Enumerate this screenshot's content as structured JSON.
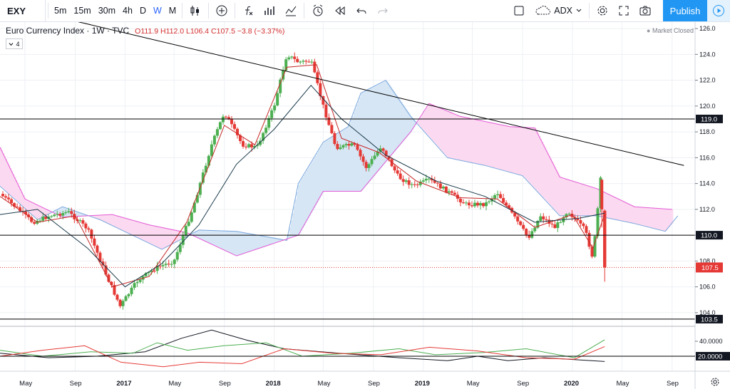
{
  "toolbar": {
    "symbol": "EXY",
    "intervals": [
      "5m",
      "15m",
      "30m",
      "4h",
      "D",
      "W",
      "M"
    ],
    "active_interval": "W",
    "indicator_label": "ADX",
    "publish_label": "Publish"
  },
  "legend": {
    "title": "Euro Currency Index · 1W · TVC",
    "open": "O111.9",
    "high": "H112.0",
    "low": "L106.4",
    "close": "C107.5",
    "change": "−3.8 (−3.37%)",
    "collapse_count": "4",
    "market_status": "Market Closed"
  },
  "colors": {
    "bull": "#4caf50",
    "bear": "#e53935",
    "accent": "#2196f3",
    "cloud_bull": "#d6e6f5",
    "cloud_bear": "#fbd9f0",
    "senkou_a": "#7aa7dd",
    "senkou_b": "#e35bd6"
  },
  "chart_data": [
    {
      "type": "candlestick",
      "title": "Euro Currency Index · 1W · TVC",
      "x_ticks": [
        "May",
        "Sep",
        "2017",
        "May",
        "Sep",
        "2018",
        "May",
        "Sep",
        "2019",
        "May",
        "Sep",
        "2020",
        "May",
        "Sep"
      ],
      "y_ticks": [
        "126.0",
        "124.0",
        "122.0",
        "120.0",
        "118.0",
        "116.0",
        "114.0",
        "112.0",
        "110.0",
        "108.0",
        "106.0",
        "104.0"
      ],
      "ylim": [
        103.0,
        126.5
      ],
      "horizontal_lines": [
        {
          "label": "119.0",
          "value": 119.0
        },
        {
          "label": "110.0",
          "value": 110.0
        },
        {
          "label": "103.5",
          "value": 103.5
        }
      ],
      "last_price": {
        "label": "107.5",
        "value": 107.5
      },
      "trendline": [
        {
          "x": "2016-05-01",
          "y": 127.5
        },
        {
          "x": "2020-09-30",
          "y": 115.4
        }
      ],
      "close_path": [
        {
          "x": "2016-03-01",
          "y": 113.2
        },
        {
          "x": "2016-04-15",
          "y": 112.0
        },
        {
          "x": "2016-05-20",
          "y": 111.0
        },
        {
          "x": "2016-07-01",
          "y": 111.5
        },
        {
          "x": "2016-08-15",
          "y": 111.8
        },
        {
          "x": "2016-10-01",
          "y": 110.5
        },
        {
          "x": "2016-11-15",
          "y": 107.0
        },
        {
          "x": "2016-12-20",
          "y": 104.5
        },
        {
          "x": "2017-02-01",
          "y": 106.5
        },
        {
          "x": "2017-03-20",
          "y": 107.5
        },
        {
          "x": "2017-05-01",
          "y": 108.0
        },
        {
          "x": "2017-06-15",
          "y": 112.0
        },
        {
          "x": "2017-08-01",
          "y": 117.0
        },
        {
          "x": "2017-09-01",
          "y": 119.5
        },
        {
          "x": "2017-10-15",
          "y": 117.0
        },
        {
          "x": "2017-11-20",
          "y": 116.8
        },
        {
          "x": "2018-01-01",
          "y": 120.0
        },
        {
          "x": "2018-02-01",
          "y": 124.0
        },
        {
          "x": "2018-03-01",
          "y": 123.4
        },
        {
          "x": "2018-04-01",
          "y": 123.5
        },
        {
          "x": "2018-05-01",
          "y": 120.0
        },
        {
          "x": "2018-06-01",
          "y": 116.8
        },
        {
          "x": "2018-07-15",
          "y": 117.0
        },
        {
          "x": "2018-08-15",
          "y": 115.2
        },
        {
          "x": "2018-09-20",
          "y": 116.9
        },
        {
          "x": "2018-11-01",
          "y": 114.5
        },
        {
          "x": "2018-12-10",
          "y": 113.8
        },
        {
          "x": "2019-01-15",
          "y": 114.3
        },
        {
          "x": "2019-03-01",
          "y": 113.4
        },
        {
          "x": "2019-04-15",
          "y": 112.4
        },
        {
          "x": "2019-06-01",
          "y": 112.4
        },
        {
          "x": "2019-07-01",
          "y": 113.3
        },
        {
          "x": "2019-08-01",
          "y": 111.9
        },
        {
          "x": "2019-09-15",
          "y": 109.8
        },
        {
          "x": "2019-10-15",
          "y": 111.5
        },
        {
          "x": "2019-11-20",
          "y": 110.6
        },
        {
          "x": "2019-12-20",
          "y": 111.9
        },
        {
          "x": "2020-02-01",
          "y": 110.4
        },
        {
          "x": "2020-02-20",
          "y": 108.2
        },
        {
          "x": "2020-03-10",
          "y": 114.3
        },
        {
          "x": "2020-03-20",
          "y": 107.5
        }
      ],
      "ichimoku_senkou_a": [
        {
          "x": "2016-03-01",
          "y": 113.8
        },
        {
          "x": "2016-06-01",
          "y": 111.2
        },
        {
          "x": "2016-08-01",
          "y": 112.2
        },
        {
          "x": "2016-11-01",
          "y": 111.2
        },
        {
          "x": "2017-02-01",
          "y": 109.8
        },
        {
          "x": "2017-04-01",
          "y": 108.9
        },
        {
          "x": "2017-07-01",
          "y": 110.4
        },
        {
          "x": "2017-10-01",
          "y": 110.3
        },
        {
          "x": "2018-02-01",
          "y": 109.6
        },
        {
          "x": "2018-03-01",
          "y": 114.0
        },
        {
          "x": "2018-05-01",
          "y": 117.2
        },
        {
          "x": "2018-07-01",
          "y": 118.4
        },
        {
          "x": "2018-08-01",
          "y": 121.0
        },
        {
          "x": "2018-10-01",
          "y": 122.0
        },
        {
          "x": "2018-12-01",
          "y": 119.2
        },
        {
          "x": "2019-03-01",
          "y": 116.0
        },
        {
          "x": "2019-06-01",
          "y": 115.4
        },
        {
          "x": "2019-09-01",
          "y": 114.6
        },
        {
          "x": "2019-12-01",
          "y": 111.5
        },
        {
          "x": "2020-03-01",
          "y": 111.5
        },
        {
          "x": "2020-06-01",
          "y": 110.9
        },
        {
          "x": "2020-08-15",
          "y": 110.3
        },
        {
          "x": "2020-09-15",
          "y": 111.5
        }
      ],
      "ichimoku_senkou_b": [
        {
          "x": "2016-03-01",
          "y": 116.8
        },
        {
          "x": "2016-05-01",
          "y": 112.8
        },
        {
          "x": "2016-08-01",
          "y": 111.4
        },
        {
          "x": "2016-12-01",
          "y": 111.6
        },
        {
          "x": "2017-03-01",
          "y": 110.8
        },
        {
          "x": "2017-06-01",
          "y": 110.2
        },
        {
          "x": "2017-10-01",
          "y": 108.4
        },
        {
          "x": "2018-03-01",
          "y": 110.0
        },
        {
          "x": "2018-05-01",
          "y": 113.4
        },
        {
          "x": "2018-08-01",
          "y": 113.4
        },
        {
          "x": "2018-12-01",
          "y": 118.0
        },
        {
          "x": "2019-01-15",
          "y": 120.2
        },
        {
          "x": "2019-04-01",
          "y": 119.2
        },
        {
          "x": "2019-08-01",
          "y": 118.4
        },
        {
          "x": "2019-10-01",
          "y": 118.3
        },
        {
          "x": "2019-12-01",
          "y": 114.5
        },
        {
          "x": "2020-03-01",
          "y": 113.6
        },
        {
          "x": "2020-06-01",
          "y": 112.2
        },
        {
          "x": "2020-09-01",
          "y": 112.0
        }
      ],
      "ma_fast": [
        {
          "x": "2016-03-01",
          "y": 113.0
        },
        {
          "x": "2016-06-01",
          "y": 111.0
        },
        {
          "x": "2016-09-01",
          "y": 111.5
        },
        {
          "x": "2016-12-01",
          "y": 106.0
        },
        {
          "x": "2017-03-01",
          "y": 106.8
        },
        {
          "x": "2017-06-01",
          "y": 111.0
        },
        {
          "x": "2017-09-01",
          "y": 118.5
        },
        {
          "x": "2017-11-15",
          "y": 117.0
        },
        {
          "x": "2018-02-01",
          "y": 123.0
        },
        {
          "x": "2018-04-15",
          "y": 123.2
        },
        {
          "x": "2018-06-15",
          "y": 117.5
        },
        {
          "x": "2018-09-15",
          "y": 116.4
        },
        {
          "x": "2018-12-15",
          "y": 114.2
        },
        {
          "x": "2019-04-01",
          "y": 112.9
        },
        {
          "x": "2019-07-01",
          "y": 112.8
        },
        {
          "x": "2019-10-01",
          "y": 110.6
        },
        {
          "x": "2020-01-01",
          "y": 111.6
        },
        {
          "x": "2020-02-20",
          "y": 109.0
        },
        {
          "x": "2020-03-20",
          "y": 111.6
        }
      ],
      "ma_slow": [
        {
          "x": "2016-03-01",
          "y": 111.6
        },
        {
          "x": "2016-06-01",
          "y": 112.0
        },
        {
          "x": "2016-10-01",
          "y": 109.0
        },
        {
          "x": "2017-01-01",
          "y": 106.0
        },
        {
          "x": "2017-04-01",
          "y": 107.8
        },
        {
          "x": "2017-07-01",
          "y": 110.8
        },
        {
          "x": "2017-10-01",
          "y": 115.5
        },
        {
          "x": "2018-01-01",
          "y": 118.2
        },
        {
          "x": "2018-04-01",
          "y": 121.6
        },
        {
          "x": "2018-06-15",
          "y": 119.0
        },
        {
          "x": "2018-10-01",
          "y": 116.2
        },
        {
          "x": "2019-02-01",
          "y": 114.2
        },
        {
          "x": "2019-06-01",
          "y": 113.0
        },
        {
          "x": "2019-10-01",
          "y": 111.0
        },
        {
          "x": "2020-01-15",
          "y": 111.3
        },
        {
          "x": "2020-03-20",
          "y": 111.7
        }
      ]
    },
    {
      "type": "line",
      "ylim": [
        0,
        60
      ],
      "y_ticks": [
        "40.0000",
        "20.0000"
      ],
      "series": [
        {
          "values": [
            [
              0,
              24
            ],
            [
              0.08,
              18
            ],
            [
              0.16,
              20
            ],
            [
              0.24,
              26
            ],
            [
              0.3,
              44
            ],
            [
              0.35,
              55
            ],
            [
              0.41,
              41
            ],
            [
              0.47,
              30
            ],
            [
              0.56,
              24
            ],
            [
              0.66,
              18
            ],
            [
              0.74,
              14
            ],
            [
              0.79,
              20
            ],
            [
              0.84,
              14
            ],
            [
              0.9,
              18
            ],
            [
              1,
              13
            ]
          ]
        },
        {
          "values": [
            [
              0,
              28
            ],
            [
              0.07,
              20
            ],
            [
              0.15,
              26
            ],
            [
              0.22,
              24
            ],
            [
              0.26,
              38
            ],
            [
              0.31,
              28
            ],
            [
              0.37,
              34
            ],
            [
              0.44,
              38
            ],
            [
              0.5,
              20
            ],
            [
              0.58,
              24
            ],
            [
              0.66,
              30
            ],
            [
              0.72,
              22
            ],
            [
              0.8,
              25
            ],
            [
              0.87,
              30
            ],
            [
              0.95,
              18
            ],
            [
              1,
              42
            ]
          ]
        },
        {
          "values": [
            [
              0,
              20
            ],
            [
              0.07,
              28
            ],
            [
              0.14,
              34
            ],
            [
              0.2,
              12
            ],
            [
              0.27,
              6
            ],
            [
              0.33,
              12
            ],
            [
              0.4,
              10
            ],
            [
              0.47,
              30
            ],
            [
              0.55,
              24
            ],
            [
              0.63,
              22
            ],
            [
              0.71,
              32
            ],
            [
              0.79,
              27
            ],
            [
              0.87,
              18
            ],
            [
              0.95,
              16
            ],
            [
              1,
              33
            ]
          ]
        }
      ]
    }
  ]
}
